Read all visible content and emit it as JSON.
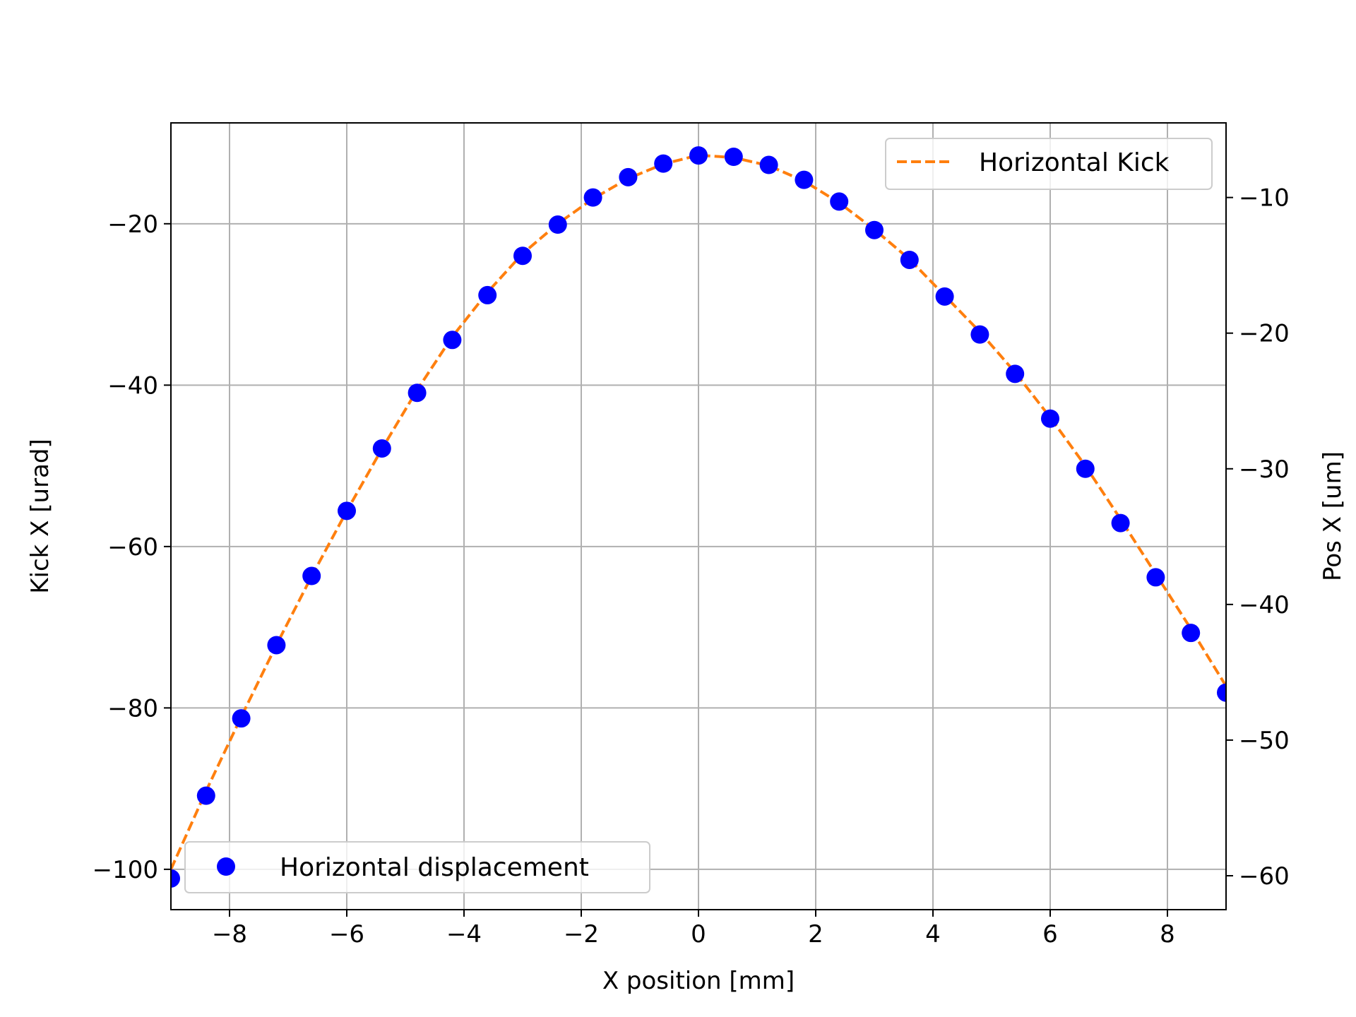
{
  "chart_data": {
    "type": "line",
    "xlabel": "X position [mm]",
    "ylabel_left": "Kick X [urad]",
    "ylabel_right": "Pos X [um]",
    "xlim": [
      -9,
      9
    ],
    "ylim_left": [
      -105,
      -7.5
    ],
    "ylim_right": [
      -62.5,
      -4.5
    ],
    "x_ticks": [
      -8,
      -6,
      -4,
      -2,
      0,
      2,
      4,
      6,
      8
    ],
    "x_tick_labels": [
      "−8",
      "−6",
      "−4",
      "−2",
      "0",
      "2",
      "4",
      "6",
      "8"
    ],
    "y_left_ticks": [
      -20,
      -40,
      -60,
      -80,
      -100
    ],
    "y_left_tick_labels": [
      "−20",
      "−40",
      "−60",
      "−80",
      "−100"
    ],
    "y_right_ticks": [
      -10,
      -20,
      -30,
      -40,
      -50,
      -60
    ],
    "y_right_tick_labels": [
      "−10",
      "−20",
      "−30",
      "−40",
      "−50",
      "−60"
    ],
    "grid": true,
    "series": [
      {
        "name": "Horizontal Kick",
        "axis": "left",
        "style": "dashed-line",
        "color": "#ff7f0e",
        "x": [
          -9,
          -8.4,
          -7.8,
          -7.2,
          -6.6,
          -6,
          -5.4,
          -4.8,
          -4.2,
          -3.6,
          -3,
          -2.4,
          -1.8,
          -1.2,
          -0.6,
          0,
          0.6,
          1.2,
          1.8,
          2.4,
          3,
          3.6,
          4.2,
          4.8,
          5.4,
          6,
          6.6,
          7.2,
          7.8,
          8.4,
          9
        ],
        "values": [
          -100,
          -90.3,
          -81.1,
          -72.2,
          -63.7,
          -55.6,
          -47.9,
          -40.6,
          -34,
          -28.5,
          -23.7,
          -20,
          -16.9,
          -14.4,
          -12.6,
          -11.5,
          -11.8,
          -12.8,
          -14.7,
          -17.4,
          -20.7,
          -24.4,
          -28.9,
          -33.4,
          -38.4,
          -44,
          -50,
          -56.6,
          -63.4,
          -70.2,
          -77.3
        ],
        "legend_position": "top-right"
      },
      {
        "name": "Horizontal displacement",
        "axis": "right",
        "style": "markers",
        "color": "#0000ff",
        "x": [
          -9,
          -8.4,
          -7.8,
          -7.2,
          -6.6,
          -6,
          -5.4,
          -4.8,
          -4.2,
          -3.6,
          -3,
          -2.4,
          -1.8,
          -1.2,
          -0.6,
          0,
          0.6,
          1.2,
          1.8,
          2.4,
          3,
          3.6,
          4.2,
          4.8,
          5.4,
          6,
          6.6,
          7.2,
          7.8,
          8.4,
          9
        ],
        "values": [
          -60.2,
          -54.1,
          -48.4,
          -43,
          -37.9,
          -33.1,
          -28.5,
          -24.4,
          -20.5,
          -17.2,
          -14.3,
          -12,
          -10,
          -8.5,
          -7.5,
          -6.9,
          -7,
          -7.6,
          -8.7,
          -10.3,
          -12.4,
          -14.6,
          -17.3,
          -20.1,
          -23,
          -26.3,
          -30,
          -34,
          -38,
          -42.1,
          -46.5
        ],
        "legend_position": "bottom-left"
      }
    ]
  }
}
